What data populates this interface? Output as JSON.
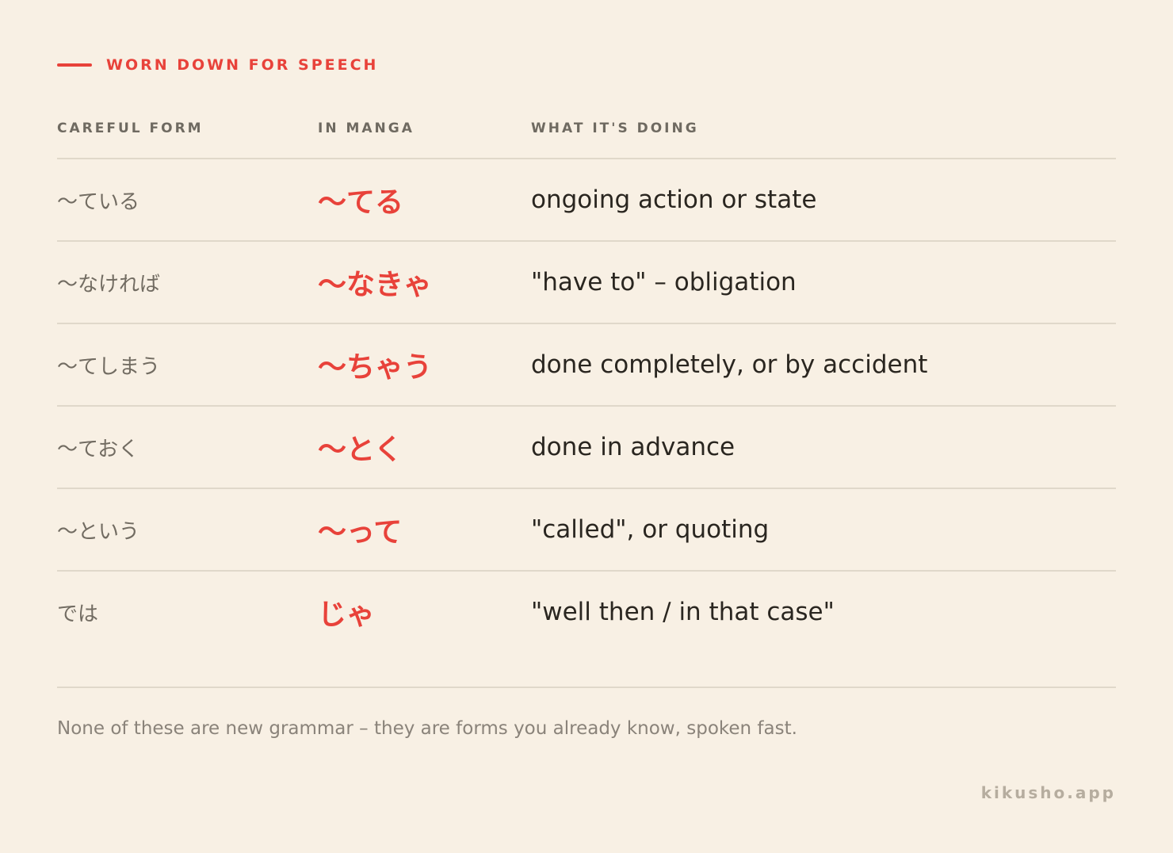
{
  "colors": {
    "accent": "#e8423a",
    "background": "#f8f0e4"
  },
  "section": {
    "title": "WORN DOWN FOR SPEECH"
  },
  "columns": {
    "careful": "CAREFUL FORM",
    "manga": "IN MANGA",
    "meaning": "WHAT IT'S DOING"
  },
  "rows": [
    {
      "careful": "〜ている",
      "manga": "〜てる",
      "meaning": "ongoing action or state"
    },
    {
      "careful": "〜なければ",
      "manga": "〜なきゃ",
      "meaning": "\"have to\" – obligation"
    },
    {
      "careful": "〜てしまう",
      "manga": "〜ちゃう",
      "meaning": "done completely, or by accident"
    },
    {
      "careful": "〜ておく",
      "manga": "〜とく",
      "meaning": "done in advance"
    },
    {
      "careful": "〜という",
      "manga": "〜って",
      "meaning": "\"called\", or quoting"
    },
    {
      "careful": "では",
      "manga": "じゃ",
      "meaning": "\"well then / in that case\""
    }
  ],
  "footnote": "None of these are new grammar – they are forms you already know, spoken fast.",
  "brand": "kikusho.app"
}
